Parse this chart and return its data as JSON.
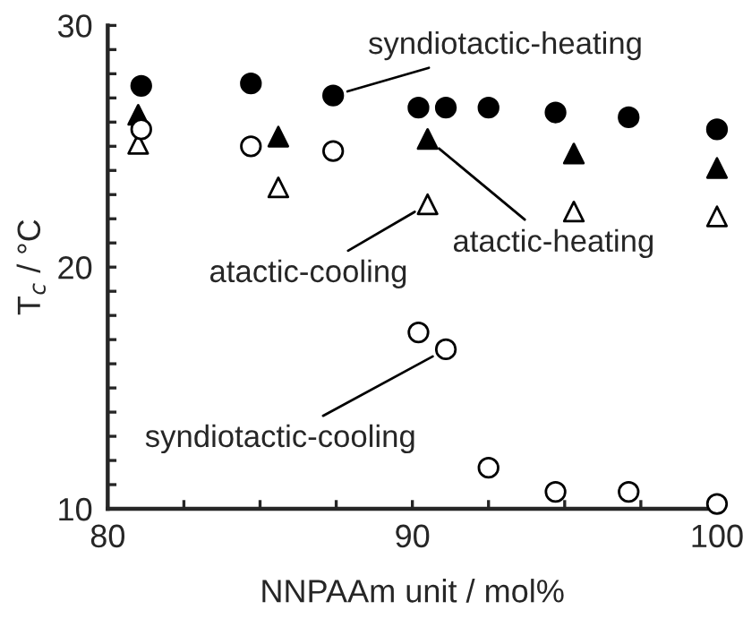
{
  "chart_data": {
    "type": "scatter",
    "xlabel": "NNPAAm unit / mol%",
    "ylabel": "T$_{c}$ / °C",
    "xlim": [
      80,
      100
    ],
    "ylim": [
      10,
      30
    ],
    "xticks": [
      80,
      {
        "value": 82.5,
        "label": null
      },
      {
        "value": 85,
        "label": null
      },
      {
        "value": 87.5,
        "label": null
      },
      90,
      {
        "value": 92.5,
        "label": null
      },
      {
        "value": 95,
        "label": null
      },
      {
        "value": 97.5,
        "label": null
      },
      100
    ],
    "yticks": [
      10,
      {
        "value": 11,
        "label": null
      },
      {
        "value": 12,
        "label": null
      },
      {
        "value": 13,
        "label": null
      },
      {
        "value": 14,
        "label": null
      },
      {
        "value": 15,
        "label": null
      },
      {
        "value": 16,
        "label": null
      },
      {
        "value": 17,
        "label": null
      },
      {
        "value": 18,
        "label": null
      },
      {
        "value": 19,
        "label": null
      },
      20,
      {
        "value": 21,
        "label": null
      },
      {
        "value": 22,
        "label": null
      },
      {
        "value": 23,
        "label": null
      },
      {
        "value": 24,
        "label": null
      },
      {
        "value": 25,
        "label": null
      },
      {
        "value": 26,
        "label": null
      },
      {
        "value": 27,
        "label": null
      },
      {
        "value": 28,
        "label": null
      },
      {
        "value": 29,
        "label": null
      },
      30
    ],
    "grid": false,
    "legend": false,
    "series": [
      {
        "color": "#000000",
        "marker": "circle",
        "x": [
          81.1,
          84.7,
          87.4,
          90.2,
          91.1,
          92.5,
          94.7,
          97.1,
          100
        ],
        "values": [
          27.5,
          27.6,
          27.1,
          26.6,
          26.6,
          26.6,
          26.4,
          26.2,
          25.7
        ]
      },
      {
        "color": "#000000",
        "marker": "triangle",
        "x": [
          81.0,
          85.6,
          90.5,
          95.3,
          100
        ],
        "values": [
          26.3,
          25.4,
          25.3,
          24.7,
          24.1
        ]
      },
      {
        "color": "#ffffff",
        "marker": "triangle",
        "x": [
          81.0,
          85.6,
          90.5,
          95.3,
          100
        ],
        "values": [
          25.1,
          23.3,
          22.6,
          22.3,
          22.1
        ]
      },
      {
        "color": "#ffffff",
        "marker": "circle",
        "x": [
          81.1,
          84.7,
          87.4,
          90.2,
          91.1,
          92.5,
          94.7,
          97.1,
          100
        ],
        "values": [
          25.7,
          25.0,
          24.8,
          17.3,
          16.6,
          11.7,
          10.7,
          10.7,
          10.2
        ]
      }
    ],
    "annotations": [
      {
        "text": "syndiotactic-heating",
        "x": 87.4,
        "y": 27.1
      },
      {
        "text": "atactic-cooling",
        "x": 90.5,
        "y": 22.6
      },
      {
        "text": "atactic-heating",
        "x": 90.5,
        "y": 25.3
      },
      {
        "text": "syndiotactic-cooling",
        "x": 91.1,
        "y": 16.6
      }
    ]
  }
}
